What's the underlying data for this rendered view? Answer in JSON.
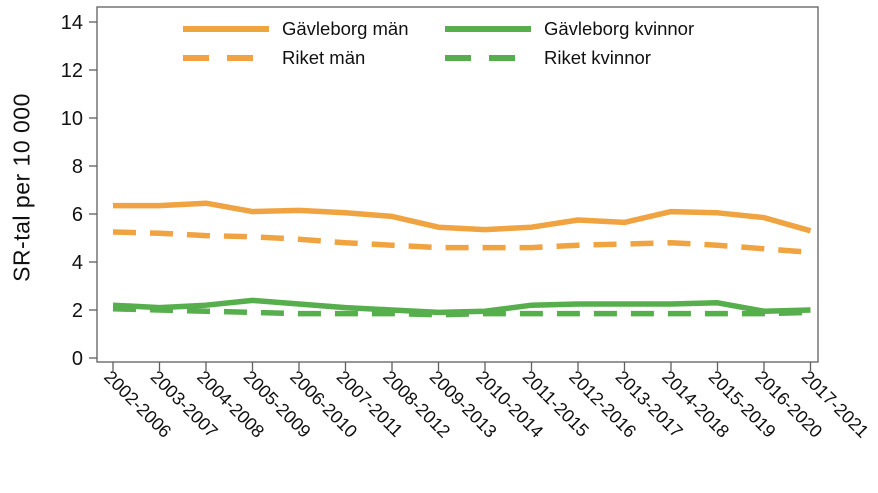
{
  "chart_data": {
    "type": "line",
    "title": "",
    "xlabel": "",
    "ylabel": "SR-tal per 10 000",
    "ylim": [
      0,
      14
    ],
    "yticks": [
      0,
      2,
      4,
      6,
      8,
      10,
      12,
      14
    ],
    "grid": false,
    "legend_position": "top-center-inside",
    "categories": [
      "2002-2006",
      "2003-2007",
      "2004-2008",
      "2005-2009",
      "2006-2010",
      "2007-2011",
      "2008-2012",
      "2009-2013",
      "2010-2014",
      "2011-2015",
      "2012-2016",
      "2013-2017",
      "2014-2018",
      "2015-2019",
      "2016-2020",
      "2017-2021"
    ],
    "series": [
      {
        "name": "Gävleborg män",
        "color": "#F0A341",
        "style": "solid",
        "values": [
          6.35,
          6.35,
          6.45,
          6.1,
          6.15,
          6.05,
          5.9,
          5.45,
          5.35,
          5.45,
          5.75,
          5.65,
          6.1,
          6.05,
          5.85,
          5.3
        ]
      },
      {
        "name": "Riket män",
        "color": "#F0A341",
        "style": "dashed",
        "values": [
          5.25,
          5.2,
          5.1,
          5.05,
          4.95,
          4.8,
          4.7,
          4.6,
          4.6,
          4.6,
          4.7,
          4.75,
          4.8,
          4.7,
          4.55,
          4.4
        ]
      },
      {
        "name": "Gävleborg kvinnor",
        "color": "#57AE4C",
        "style": "solid",
        "values": [
          2.2,
          2.1,
          2.2,
          2.4,
          2.25,
          2.1,
          2.0,
          1.9,
          1.95,
          2.2,
          2.25,
          2.25,
          2.25,
          2.3,
          1.95,
          2.0
        ]
      },
      {
        "name": "Riket kvinnor",
        "color": "#57AE4C",
        "style": "dashed",
        "values": [
          2.05,
          2.0,
          1.95,
          1.9,
          1.85,
          1.85,
          1.85,
          1.8,
          1.85,
          1.85,
          1.85,
          1.85,
          1.85,
          1.85,
          1.85,
          1.9
        ]
      }
    ]
  }
}
